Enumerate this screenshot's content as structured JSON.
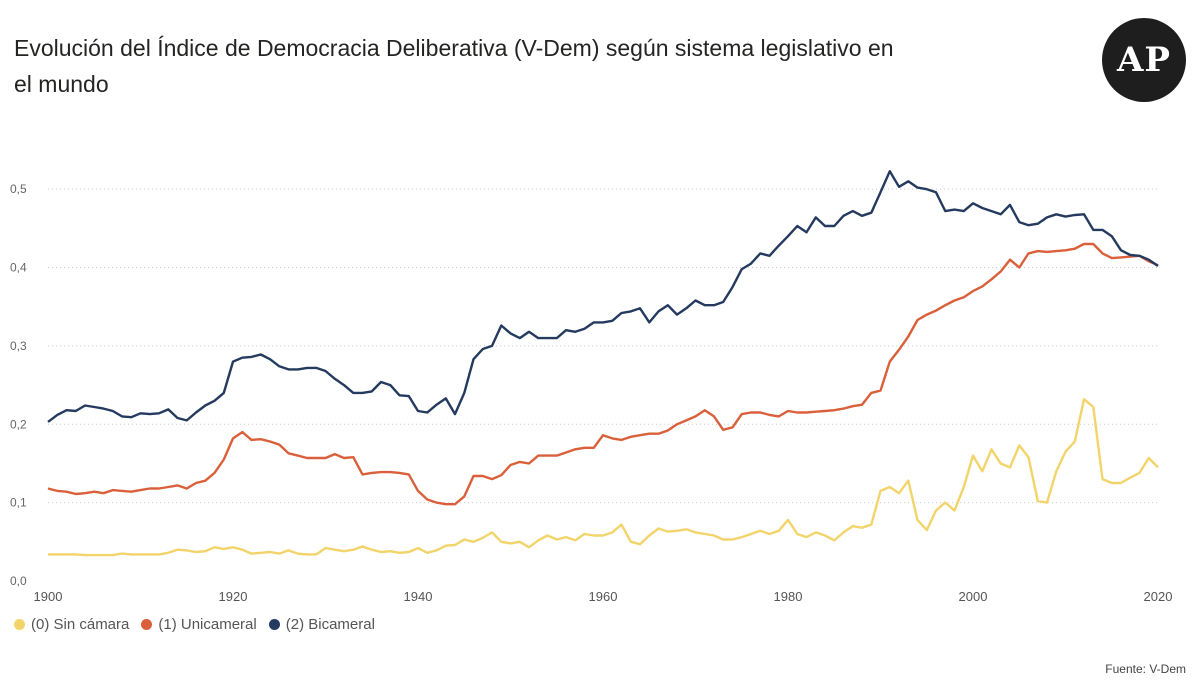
{
  "logo": {
    "text": "AP"
  },
  "source": "Fuente: V-Dem",
  "chart_data": {
    "type": "line",
    "title": "Evolución del Índice de Democracia Deliberativa (V-Dem) según sistema legislativo en el mundo",
    "xlabel": "",
    "ylabel": "",
    "xlim": [
      1900,
      2020
    ],
    "ylim": [
      0,
      0.55
    ],
    "grid": "horizontal dotted",
    "legend_position": "bottom-left",
    "x_ticks": [
      "1900",
      "1920",
      "1940",
      "1960",
      "1980",
      "2000",
      "2020"
    ],
    "y_ticks": [
      "0,0",
      "0,1",
      "0,2",
      "0,3",
      "0,4",
      "0,5"
    ],
    "x": [
      1900,
      1901,
      1902,
      1903,
      1904,
      1905,
      1906,
      1907,
      1908,
      1909,
      1910,
      1911,
      1912,
      1913,
      1914,
      1915,
      1916,
      1917,
      1918,
      1919,
      1920,
      1921,
      1922,
      1923,
      1924,
      1925,
      1926,
      1927,
      1928,
      1929,
      1930,
      1931,
      1932,
      1933,
      1934,
      1935,
      1936,
      1937,
      1938,
      1939,
      1940,
      1941,
      1942,
      1943,
      1944,
      1945,
      1946,
      1947,
      1948,
      1949,
      1950,
      1951,
      1952,
      1953,
      1954,
      1955,
      1956,
      1957,
      1958,
      1959,
      1960,
      1961,
      1962,
      1963,
      1964,
      1965,
      1966,
      1967,
      1968,
      1969,
      1970,
      1971,
      1972,
      1973,
      1974,
      1975,
      1976,
      1977,
      1978,
      1979,
      1980,
      1981,
      1982,
      1983,
      1984,
      1985,
      1986,
      1987,
      1988,
      1989,
      1990,
      1991,
      1992,
      1993,
      1994,
      1995,
      1996,
      1997,
      1998,
      1999,
      2000,
      2001,
      2002,
      2003,
      2004,
      2005,
      2006,
      2007,
      2008,
      2009,
      2010,
      2011,
      2012,
      2013,
      2014,
      2015,
      2016,
      2017,
      2018,
      2019,
      2020
    ],
    "series": [
      {
        "name": "(0) Sin cámara",
        "color": "#F2D46B",
        "values": [
          0.034,
          0.034,
          0.034,
          0.034,
          0.033,
          0.033,
          0.033,
          0.033,
          0.035,
          0.034,
          0.034,
          0.034,
          0.034,
          0.036,
          0.04,
          0.039,
          0.037,
          0.038,
          0.043,
          0.041,
          0.043,
          0.04,
          0.035,
          0.036,
          0.037,
          0.035,
          0.039,
          0.035,
          0.034,
          0.034,
          0.042,
          0.04,
          0.038,
          0.04,
          0.044,
          0.04,
          0.037,
          0.038,
          0.036,
          0.037,
          0.042,
          0.036,
          0.039,
          0.045,
          0.046,
          0.053,
          0.05,
          0.055,
          0.062,
          0.05,
          0.048,
          0.05,
          0.043,
          0.052,
          0.058,
          0.053,
          0.056,
          0.052,
          0.06,
          0.058,
          0.058,
          0.062,
          0.072,
          0.05,
          0.047,
          0.058,
          0.067,
          0.063,
          0.064,
          0.066,
          0.062,
          0.06,
          0.058,
          0.053,
          0.053,
          0.056,
          0.06,
          0.064,
          0.06,
          0.064,
          0.078,
          0.06,
          0.056,
          0.062,
          0.058,
          0.052,
          0.062,
          0.07,
          0.068,
          0.072,
          0.115,
          0.12,
          0.112,
          0.128,
          0.078,
          0.065,
          0.09,
          0.1,
          0.09,
          0.12,
          0.16,
          0.14,
          0.168,
          0.15,
          0.145,
          0.173,
          0.158,
          0.102,
          0.1,
          0.14,
          0.165,
          0.178,
          0.232,
          0.222,
          0.13,
          0.125,
          0.125,
          0.132,
          0.138,
          0.157,
          0.145
        ]
      },
      {
        "name": "(1) Unicameral",
        "color": "#D9603B",
        "values": [
          0.118,
          0.115,
          0.114,
          0.111,
          0.112,
          0.114,
          0.112,
          0.116,
          0.115,
          0.114,
          0.116,
          0.118,
          0.118,
          0.12,
          0.122,
          0.118,
          0.125,
          0.128,
          0.138,
          0.155,
          0.182,
          0.19,
          0.18,
          0.181,
          0.178,
          0.174,
          0.163,
          0.16,
          0.157,
          0.157,
          0.157,
          0.162,
          0.157,
          0.158,
          0.136,
          0.138,
          0.139,
          0.139,
          0.138,
          0.136,
          0.115,
          0.104,
          0.1,
          0.098,
          0.098,
          0.108,
          0.134,
          0.134,
          0.13,
          0.135,
          0.148,
          0.152,
          0.15,
          0.16,
          0.16,
          0.16,
          0.164,
          0.168,
          0.17,
          0.17,
          0.186,
          0.182,
          0.18,
          0.184,
          0.186,
          0.188,
          0.188,
          0.192,
          0.2,
          0.205,
          0.21,
          0.218,
          0.21,
          0.193,
          0.196,
          0.213,
          0.215,
          0.215,
          0.212,
          0.21,
          0.217,
          0.215,
          0.215,
          0.216,
          0.217,
          0.218,
          0.22,
          0.223,
          0.225,
          0.24,
          0.243,
          0.28,
          0.295,
          0.312,
          0.333,
          0.34,
          0.345,
          0.352,
          0.358,
          0.362,
          0.37,
          0.376,
          0.385,
          0.395,
          0.41,
          0.4,
          0.418,
          0.421,
          0.42,
          0.421,
          0.422,
          0.424,
          0.43,
          0.43,
          0.418,
          0.412,
          0.413,
          0.414,
          0.415,
          0.408,
          0.403
        ]
      },
      {
        "name": "(2) Bicameral",
        "color": "#243A5E",
        "values": [
          0.203,
          0.212,
          0.218,
          0.217,
          0.224,
          0.222,
          0.22,
          0.217,
          0.21,
          0.209,
          0.214,
          0.213,
          0.214,
          0.219,
          0.208,
          0.205,
          0.215,
          0.224,
          0.23,
          0.24,
          0.28,
          0.285,
          0.286,
          0.289,
          0.283,
          0.274,
          0.27,
          0.27,
          0.272,
          0.272,
          0.268,
          0.258,
          0.25,
          0.24,
          0.24,
          0.242,
          0.254,
          0.25,
          0.237,
          0.236,
          0.217,
          0.215,
          0.225,
          0.233,
          0.213,
          0.24,
          0.283,
          0.296,
          0.3,
          0.326,
          0.316,
          0.31,
          0.318,
          0.31,
          0.31,
          0.31,
          0.32,
          0.318,
          0.322,
          0.33,
          0.33,
          0.332,
          0.342,
          0.344,
          0.348,
          0.33,
          0.344,
          0.352,
          0.34,
          0.348,
          0.358,
          0.352,
          0.352,
          0.356,
          0.375,
          0.398,
          0.405,
          0.418,
          0.415,
          0.428,
          0.44,
          0.453,
          0.445,
          0.464,
          0.453,
          0.453,
          0.466,
          0.472,
          0.466,
          0.47,
          0.496,
          0.523,
          0.503,
          0.51,
          0.502,
          0.5,
          0.496,
          0.472,
          0.474,
          0.472,
          0.482,
          0.476,
          0.472,
          0.468,
          0.48,
          0.458,
          0.454,
          0.456,
          0.464,
          0.468,
          0.465,
          0.467,
          0.468,
          0.448,
          0.448,
          0.44,
          0.422,
          0.416,
          0.415,
          0.41,
          0.402
        ]
      }
    ]
  }
}
